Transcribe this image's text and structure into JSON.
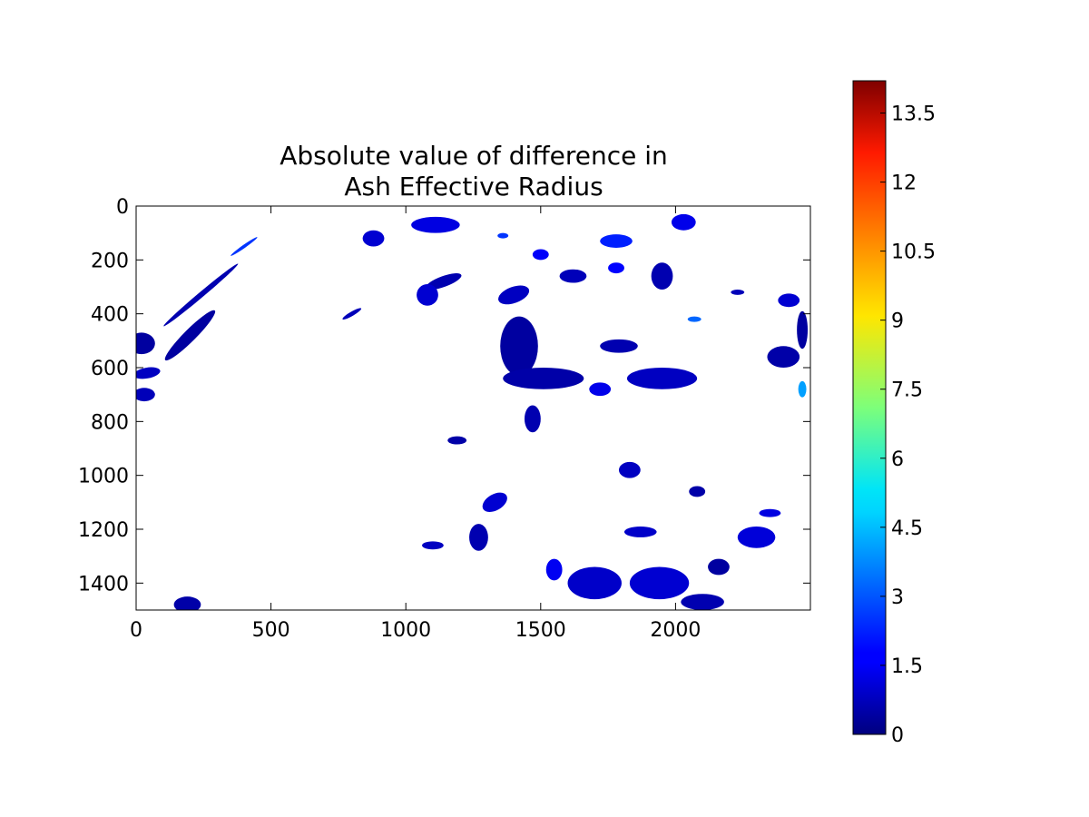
{
  "chart_data": {
    "type": "heatmap",
    "title_lines": [
      "Absolute value of difference in",
      "Ash Effective Radius"
    ],
    "xlabel": "",
    "ylabel": "",
    "xlim": [
      0,
      2500
    ],
    "ylim": [
      1500,
      0
    ],
    "y_inverted": true,
    "x_ticks": [
      0,
      500,
      1000,
      1500,
      2000
    ],
    "y_ticks": [
      0,
      200,
      400,
      600,
      800,
      1000,
      1200,
      1400
    ],
    "grid": false,
    "colormap": "jet",
    "colorbar": {
      "min": 0,
      "max": 14.2,
      "ticks": [
        0,
        1.5,
        3,
        4.5,
        6,
        7.5,
        9,
        10.5,
        12,
        13.5
      ],
      "tick_labels": [
        "0",
        "1.5",
        "3",
        "4.5",
        "6",
        "7.5",
        "9",
        "10.5",
        "12",
        "13.5"
      ]
    },
    "background_color": "#ffffff",
    "regions": [
      {
        "x": 20,
        "y": 510,
        "rx": 50,
        "ry": 40,
        "angle": 0,
        "value": 0.4
      },
      {
        "x": 200,
        "y": 480,
        "rx": 130,
        "ry": 22,
        "angle": -45,
        "value": 0.4
      },
      {
        "x": 240,
        "y": 330,
        "rx": 180,
        "ry": 10,
        "angle": -40,
        "value": 0.6
      },
      {
        "x": 40,
        "y": 620,
        "rx": 50,
        "ry": 20,
        "angle": -10,
        "value": 0.8
      },
      {
        "x": 30,
        "y": 700,
        "rx": 40,
        "ry": 25,
        "angle": 0,
        "value": 0.7
      },
      {
        "x": 400,
        "y": 150,
        "rx": 60,
        "ry": 6,
        "angle": -35,
        "value": 2.5
      },
      {
        "x": 190,
        "y": 1480,
        "rx": 50,
        "ry": 30,
        "angle": 0,
        "value": 0.5
      },
      {
        "x": 1110,
        "y": 70,
        "rx": 90,
        "ry": 30,
        "angle": 0,
        "value": 1.2
      },
      {
        "x": 880,
        "y": 120,
        "rx": 40,
        "ry": 30,
        "angle": 0,
        "value": 1.0
      },
      {
        "x": 1140,
        "y": 280,
        "rx": 70,
        "ry": 20,
        "angle": -20,
        "value": 0.6
      },
      {
        "x": 1080,
        "y": 330,
        "rx": 40,
        "ry": 40,
        "angle": 0,
        "value": 1.0
      },
      {
        "x": 1400,
        "y": 330,
        "rx": 60,
        "ry": 30,
        "angle": -20,
        "value": 0.8
      },
      {
        "x": 1420,
        "y": 520,
        "rx": 70,
        "ry": 110,
        "angle": 0,
        "value": 0.4
      },
      {
        "x": 1510,
        "y": 640,
        "rx": 150,
        "ry": 40,
        "angle": 0,
        "value": 0.5
      },
      {
        "x": 1470,
        "y": 790,
        "rx": 30,
        "ry": 50,
        "angle": 0,
        "value": 0.6
      },
      {
        "x": 1190,
        "y": 870,
        "rx": 35,
        "ry": 15,
        "angle": 0,
        "value": 0.5
      },
      {
        "x": 1620,
        "y": 260,
        "rx": 50,
        "ry": 25,
        "angle": 0,
        "value": 0.7
      },
      {
        "x": 1780,
        "y": 230,
        "rx": 30,
        "ry": 20,
        "angle": 0,
        "value": 1.8
      },
      {
        "x": 1950,
        "y": 260,
        "rx": 40,
        "ry": 50,
        "angle": 0,
        "value": 0.6
      },
      {
        "x": 1790,
        "y": 520,
        "rx": 70,
        "ry": 25,
        "angle": 0,
        "value": 0.6
      },
      {
        "x": 1950,
        "y": 640,
        "rx": 130,
        "ry": 40,
        "angle": 0,
        "value": 0.8
      },
      {
        "x": 1720,
        "y": 680,
        "rx": 40,
        "ry": 25,
        "angle": 0,
        "value": 1.3
      },
      {
        "x": 2400,
        "y": 560,
        "rx": 60,
        "ry": 40,
        "angle": 0,
        "value": 0.5
      },
      {
        "x": 2470,
        "y": 460,
        "rx": 20,
        "ry": 70,
        "angle": 0,
        "value": 0.4
      },
      {
        "x": 2470,
        "y": 680,
        "rx": 15,
        "ry": 30,
        "angle": 0,
        "value": 4.0
      },
      {
        "x": 2230,
        "y": 320,
        "rx": 25,
        "ry": 10,
        "angle": 0,
        "value": 0.7
      },
      {
        "x": 2420,
        "y": 350,
        "rx": 40,
        "ry": 25,
        "angle": 0,
        "value": 1.0
      },
      {
        "x": 1780,
        "y": 130,
        "rx": 60,
        "ry": 25,
        "angle": 0,
        "value": 2.2
      },
      {
        "x": 2030,
        "y": 60,
        "rx": 45,
        "ry": 30,
        "angle": 0,
        "value": 1.3
      },
      {
        "x": 2080,
        "y": 1060,
        "rx": 30,
        "ry": 20,
        "angle": 0,
        "value": 0.5
      },
      {
        "x": 2350,
        "y": 1140,
        "rx": 40,
        "ry": 15,
        "angle": 0,
        "value": 1.2
      },
      {
        "x": 1270,
        "y": 1230,
        "rx": 35,
        "ry": 50,
        "angle": 0,
        "value": 0.6
      },
      {
        "x": 1100,
        "y": 1260,
        "rx": 40,
        "ry": 15,
        "angle": 0,
        "value": 0.8
      },
      {
        "x": 1700,
        "y": 1400,
        "rx": 100,
        "ry": 60,
        "angle": 0,
        "value": 0.9
      },
      {
        "x": 1940,
        "y": 1400,
        "rx": 110,
        "ry": 60,
        "angle": 0,
        "value": 1.0
      },
      {
        "x": 2160,
        "y": 1340,
        "rx": 40,
        "ry": 30,
        "angle": 0,
        "value": 0.4
      },
      {
        "x": 2100,
        "y": 1470,
        "rx": 80,
        "ry": 30,
        "angle": 0,
        "value": 0.6
      },
      {
        "x": 1330,
        "y": 1100,
        "rx": 50,
        "ry": 30,
        "angle": -30,
        "value": 1.0
      },
      {
        "x": 1870,
        "y": 1210,
        "rx": 60,
        "ry": 20,
        "angle": 0,
        "value": 0.9
      },
      {
        "x": 2300,
        "y": 1230,
        "rx": 70,
        "ry": 40,
        "angle": 0,
        "value": 1.1
      },
      {
        "x": 1830,
        "y": 980,
        "rx": 40,
        "ry": 30,
        "angle": 0,
        "value": 0.8
      },
      {
        "x": 1500,
        "y": 180,
        "rx": 30,
        "ry": 20,
        "angle": 0,
        "value": 1.5
      },
      {
        "x": 800,
        "y": 400,
        "rx": 40,
        "ry": 8,
        "angle": -30,
        "value": 0.7
      },
      {
        "x": 1360,
        "y": 110,
        "rx": 20,
        "ry": 10,
        "angle": 0,
        "value": 2.5
      },
      {
        "x": 2070,
        "y": 420,
        "rx": 25,
        "ry": 10,
        "angle": 0,
        "value": 3.2
      },
      {
        "x": 1550,
        "y": 1350,
        "rx": 30,
        "ry": 40,
        "angle": 0,
        "value": 1.4
      }
    ]
  }
}
